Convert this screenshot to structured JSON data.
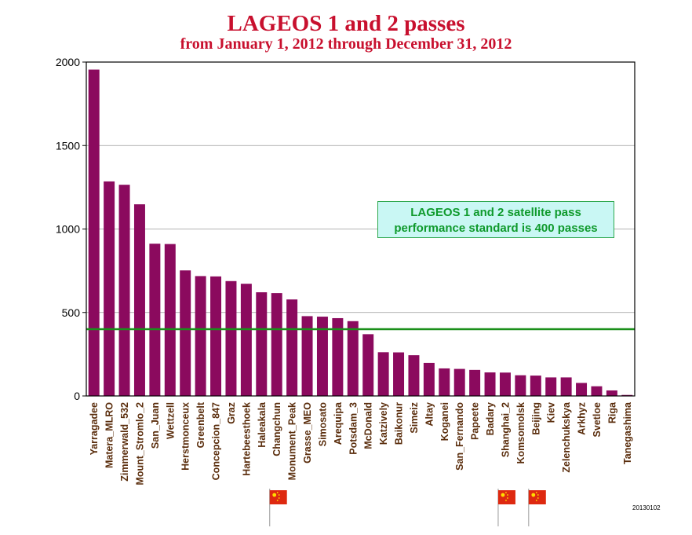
{
  "chart_data": {
    "type": "bar",
    "title": "LAGEOS 1 and 2 passes",
    "subtitle": "from January 1, 2012 through December 31, 2012",
    "xlabel": "",
    "ylabel": "",
    "ylim": [
      0,
      2000
    ],
    "yticks": [
      "0",
      "500",
      "1000",
      "1500",
      "2000"
    ],
    "grid": true,
    "bar_color": "#8b0a5e",
    "categories": [
      "Yarragadee",
      "Matera_MLRO",
      "Zimmerwald_532",
      "Mount_Stromlo_2",
      "San_Juan",
      "Wettzell",
      "Herstmonceux",
      "Greenbelt",
      "Concepcion_847",
      "Graz",
      "Hartebeesthoek",
      "Haleakala",
      "Changchun",
      "Monument_Peak",
      "Grasse_MEO",
      "Simosato",
      "Arequipa",
      "Potsdam_3",
      "McDonald",
      "Katzively",
      "Baikonur",
      "Simeiz",
      "Altay",
      "Koganei",
      "San_Fernando",
      "Papeete",
      "Badary",
      "Shanghai_2",
      "Komsomolsk",
      "Beijing",
      "Kiev",
      "Zelenchukskya",
      "Arkhyz",
      "Svetloe",
      "Riga",
      "Tanegashima"
    ],
    "values": [
      1955,
      1285,
      1265,
      1148,
      912,
      910,
      752,
      718,
      716,
      688,
      672,
      621,
      616,
      578,
      478,
      475,
      466,
      448,
      370,
      262,
      261,
      244,
      198,
      165,
      162,
      156,
      141,
      140,
      124,
      122,
      111,
      111,
      78,
      58,
      33,
      6
    ],
    "reference_line": {
      "value": 400,
      "color": "#1a8f1a"
    },
    "annotation": {
      "line1": "LAGEOS 1 and 2 satellite pass",
      "line2": "performance standard is 400 passes"
    },
    "flag_stations": [
      "Changchun",
      "Shanghai_2",
      "Beijing"
    ]
  },
  "footer": {
    "stamp": "20130102"
  },
  "colors": {
    "title": "#c8102e",
    "label": "#5a2d0c",
    "flag": "#de2910",
    "flag_star": "#ffde00"
  }
}
